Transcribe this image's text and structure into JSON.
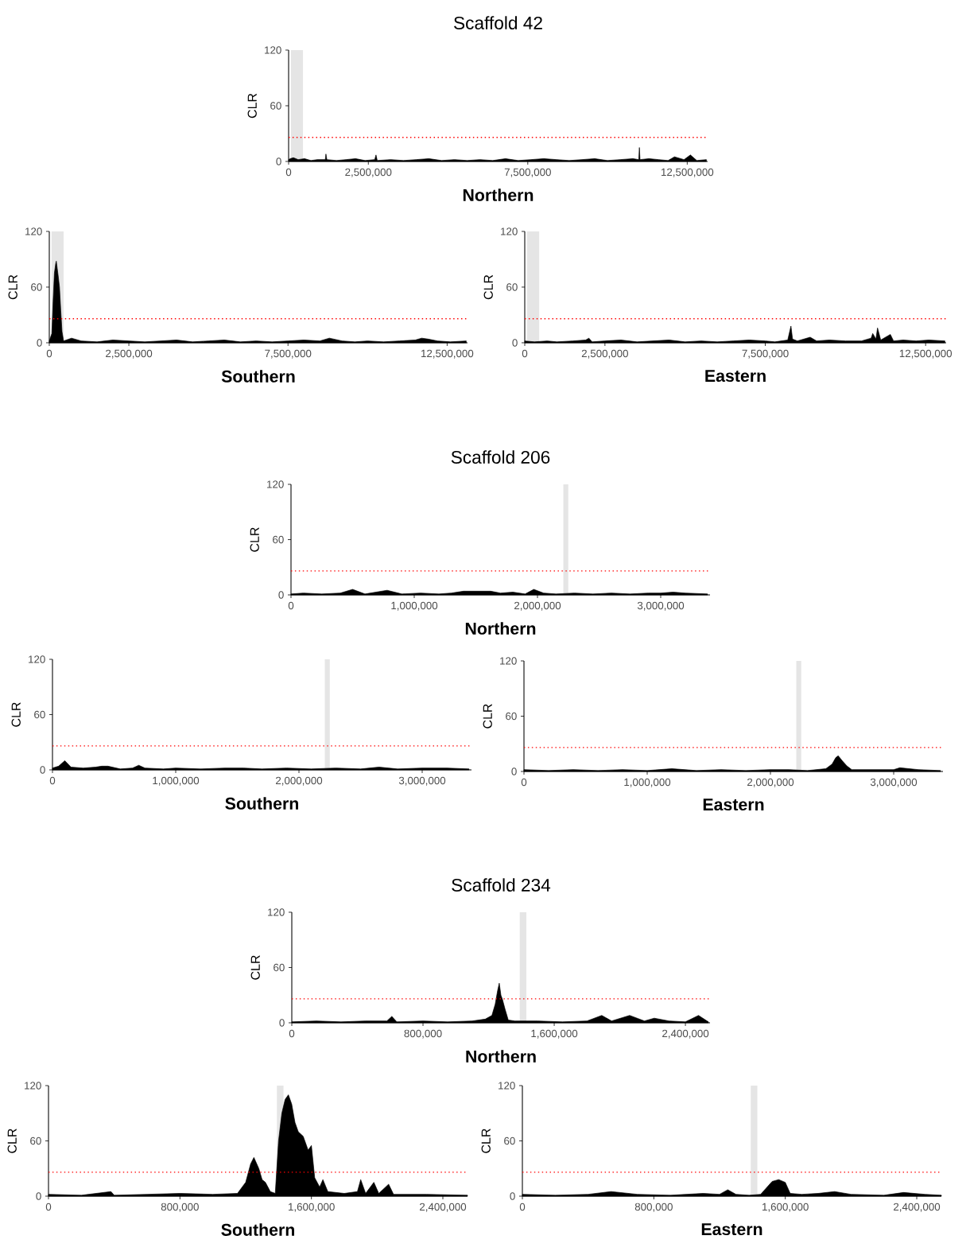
{
  "chart_data": [
    {
      "type": "area",
      "title": "Scaffold 42",
      "xlabel": "Northern",
      "ylabel": "CLR",
      "color": "#000000",
      "xlim": [
        0,
        13140000
      ],
      "xticks": [
        0,
        {
          "value": 2500000,
          "label": "2,500,000"
        },
        {
          "value": 7500000,
          "label": "7,500,000"
        },
        {
          "value": 12500000,
          "label": "12,500,000"
        }
      ],
      "ylim": [
        0,
        120
      ],
      "yticks": [
        0,
        60,
        120
      ],
      "ref_lines": [
        {
          "axis": "y",
          "value": 26,
          "color": "#ff0000",
          "line_style": "dotted"
        }
      ],
      "bands": [
        {
          "axis": "x",
          "from": 70000,
          "to": 450000,
          "color": "#e5e5e5"
        }
      ],
      "x": [
        0,
        50000,
        150000,
        300000,
        500000,
        700000,
        900000,
        1150000,
        1170000,
        1200000,
        1500000,
        1800000,
        2100000,
        2400000,
        2700000,
        2740000,
        2780000,
        3200000,
        3600000,
        4000000,
        4400000,
        4800000,
        5200000,
        5600000,
        6000000,
        6400000,
        6800000,
        7200000,
        7600000,
        8000000,
        8400000,
        8800000,
        9200000,
        9600000,
        10000000,
        10400000,
        10800000,
        10980000,
        11000000,
        11020000,
        11300000,
        11600000,
        11900000,
        12100000,
        12400000,
        12600000,
        12800000,
        13100000
      ],
      "values": [
        2,
        3,
        4,
        2,
        3,
        1,
        2,
        2,
        8,
        2,
        1,
        2,
        3,
        1,
        2,
        7,
        1,
        2,
        1,
        2,
        3,
        1,
        2,
        1,
        2,
        1,
        3,
        1,
        2,
        3,
        2,
        1,
        2,
        3,
        1,
        2,
        3,
        2,
        15,
        2,
        3,
        2,
        1,
        5,
        2,
        7,
        1,
        2
      ]
    },
    {
      "type": "area",
      "xlabel": "Southern",
      "ylabel": "CLR",
      "color": "#000000",
      "xlim": [
        0,
        13140000
      ],
      "xticks": [
        0,
        {
          "value": 2500000,
          "label": "2,500,000"
        },
        {
          "value": 7500000,
          "label": "7,500,000"
        },
        {
          "value": 12500000,
          "label": "12,500,000"
        }
      ],
      "ylim": [
        0,
        120
      ],
      "yticks": [
        0,
        60,
        120
      ],
      "ref_lines": [
        {
          "axis": "y",
          "value": 26,
          "color": "#ff0000",
          "line_style": "dotted"
        }
      ],
      "bands": [
        {
          "axis": "x",
          "from": 70000,
          "to": 450000,
          "color": "#e5e5e5"
        }
      ],
      "x": [
        0,
        80000,
        120000,
        160000,
        200000,
        220000,
        250000,
        280000,
        320000,
        360000,
        400000,
        450000,
        700000,
        1000000,
        1500000,
        2000000,
        2500000,
        3000000,
        3500000,
        4000000,
        4500000,
        5000000,
        5500000,
        6000000,
        6500000,
        7000000,
        7500000,
        8000000,
        8500000,
        8800000,
        9200000,
        9600000,
        10000000,
        10500000,
        11000000,
        11500000,
        11700000,
        11900000,
        12200000,
        12600000,
        13100000
      ],
      "values": [
        2,
        10,
        45,
        75,
        85,
        88,
        80,
        72,
        60,
        35,
        12,
        2,
        5,
        2,
        1,
        3,
        2,
        1,
        2,
        3,
        1,
        2,
        3,
        1,
        2,
        1,
        2,
        3,
        2,
        5,
        2,
        1,
        2,
        1,
        2,
        3,
        5,
        4,
        2,
        1,
        2
      ]
    },
    {
      "type": "area",
      "xlabel": "Eastern",
      "ylabel": "CLR",
      "color": "#000000",
      "xlim": [
        0,
        13140000
      ],
      "xticks": [
        0,
        {
          "value": 2500000,
          "label": "2,500,000"
        },
        {
          "value": 7500000,
          "label": "7,500,000"
        },
        {
          "value": 12500000,
          "label": "12,500,000"
        }
      ],
      "ylim": [
        0,
        120
      ],
      "yticks": [
        0,
        60,
        120
      ],
      "ref_lines": [
        {
          "axis": "y",
          "value": 26,
          "color": "#ff0000",
          "line_style": "dotted"
        }
      ],
      "bands": [
        {
          "axis": "x",
          "from": 70000,
          "to": 450000,
          "color": "#e5e5e5"
        }
      ],
      "x": [
        0,
        300000,
        700000,
        1000000,
        1500000,
        1900000,
        2000000,
        2100000,
        2500000,
        3000000,
        3500000,
        4000000,
        4500000,
        5000000,
        5500000,
        6000000,
        6500000,
        7000000,
        7500000,
        7800000,
        8200000,
        8300000,
        8350000,
        8500000,
        8900000,
        9100000,
        9500000,
        10000000,
        10500000,
        10800000,
        10850000,
        10950000,
        11000000,
        11100000,
        11400000,
        11500000,
        11800000,
        12200000,
        12600000,
        13100000
      ],
      "values": [
        2,
        1,
        2,
        1,
        2,
        3,
        5,
        1,
        2,
        3,
        1,
        2,
        3,
        1,
        2,
        1,
        2,
        3,
        2,
        1,
        3,
        18,
        4,
        2,
        6,
        2,
        3,
        2,
        2,
        5,
        10,
        4,
        16,
        3,
        9,
        2,
        3,
        2,
        3,
        2
      ]
    },
    {
      "type": "area",
      "title": "Scaffold 206",
      "xlabel": "Northern",
      "ylabel": "CLR",
      "color": "#000000",
      "xlim": [
        0,
        3400000
      ],
      "xticks": [
        0,
        {
          "value": 1000000,
          "label": "1,000,000"
        },
        {
          "value": 2000000,
          "label": "2,000,000"
        },
        {
          "value": 3000000,
          "label": "3,000,000"
        }
      ],
      "ylim": [
        0,
        120
      ],
      "yticks": [
        0,
        60,
        120
      ],
      "ref_lines": [
        {
          "axis": "y",
          "value": 26,
          "color": "#ff0000",
          "line_style": "dotted"
        }
      ],
      "bands": [
        {
          "axis": "x",
          "from": 2210000,
          "to": 2250000,
          "color": "#e5e5e5"
        }
      ],
      "x": [
        0,
        100000,
        250000,
        400000,
        500000,
        600000,
        780000,
        900000,
        1050000,
        1200000,
        1300000,
        1400000,
        1520000,
        1620000,
        1700000,
        1800000,
        1900000,
        1970000,
        2050000,
        2150000,
        2300000,
        2450000,
        2600000,
        2750000,
        2900000,
        3000000,
        3100000,
        3200000,
        3380000
      ],
      "values": [
        1,
        2,
        1,
        2,
        6,
        1,
        5,
        1,
        2,
        1,
        2,
        4,
        4,
        4,
        2,
        3,
        1,
        6,
        2,
        1,
        2,
        1,
        2,
        1,
        2,
        2,
        3,
        2,
        1
      ]
    },
    {
      "type": "area",
      "xlabel": "Southern",
      "ylabel": "CLR",
      "color": "#000000",
      "xlim": [
        0,
        3400000
      ],
      "xticks": [
        0,
        {
          "value": 1000000,
          "label": "1,000,000"
        },
        {
          "value": 2000000,
          "label": "2,000,000"
        },
        {
          "value": 3000000,
          "label": "3,000,000"
        }
      ],
      "ylim": [
        0,
        120
      ],
      "yticks": [
        0,
        60,
        120
      ],
      "ref_lines": [
        {
          "axis": "y",
          "value": 26,
          "color": "#ff0000",
          "line_style": "dotted"
        }
      ],
      "bands": [
        {
          "axis": "x",
          "from": 2210000,
          "to": 2250000,
          "color": "#e5e5e5"
        }
      ],
      "x": [
        0,
        50000,
        100000,
        150000,
        250000,
        350000,
        400000,
        450000,
        550000,
        650000,
        700000,
        750000,
        900000,
        1000000,
        1200000,
        1400000,
        1550000,
        1700000,
        1900000,
        2100000,
        2300000,
        2500000,
        2650000,
        2800000,
        3000000,
        3200000,
        3380000
      ],
      "values": [
        2,
        4,
        10,
        3,
        2,
        3,
        4,
        4,
        1,
        2,
        5,
        2,
        1,
        2,
        1,
        2,
        2,
        1,
        2,
        1,
        2,
        1,
        3,
        1,
        2,
        2,
        1
      ]
    },
    {
      "type": "area",
      "xlabel": "Eastern",
      "ylabel": "CLR",
      "color": "#000000",
      "xlim": [
        0,
        3400000
      ],
      "xticks": [
        0,
        {
          "value": 1000000,
          "label": "1,000,000"
        },
        {
          "value": 2000000,
          "label": "2,000,000"
        },
        {
          "value": 3000000,
          "label": "3,000,000"
        }
      ],
      "ylim": [
        0,
        120
      ],
      "yticks": [
        0,
        60,
        120
      ],
      "ref_lines": [
        {
          "axis": "y",
          "value": 26,
          "color": "#ff0000",
          "line_style": "dotted"
        }
      ],
      "bands": [
        {
          "axis": "x",
          "from": 2210000,
          "to": 2250000,
          "color": "#e5e5e5"
        }
      ],
      "x": [
        0,
        200000,
        400000,
        600000,
        800000,
        1000000,
        1200000,
        1400000,
        1600000,
        1800000,
        2000000,
        2150000,
        2300000,
        2450000,
        2500000,
        2530000,
        2550000,
        2580000,
        2620000,
        2660000,
        2800000,
        3000000,
        3050000,
        3200000,
        3380000
      ],
      "values": [
        2,
        1,
        2,
        1,
        2,
        1,
        3,
        1,
        2,
        1,
        2,
        2,
        1,
        3,
        8,
        15,
        17,
        12,
        6,
        2,
        2,
        2,
        4,
        2,
        1
      ]
    },
    {
      "type": "area",
      "title": "Scaffold 234",
      "xlabel": "Northern",
      "ylabel": "CLR",
      "color": "#000000",
      "xlim": [
        0,
        2550000
      ],
      "xticks": [
        0,
        {
          "value": 800000,
          "label": "800,000"
        },
        {
          "value": 1600000,
          "label": "1,600,000"
        },
        {
          "value": 2400000,
          "label": "2,400,000"
        }
      ],
      "ylim": [
        0,
        120
      ],
      "yticks": [
        0,
        60,
        120
      ],
      "ref_lines": [
        {
          "axis": "y",
          "value": 26,
          "color": "#ff0000",
          "line_style": "dotted"
        }
      ],
      "bands": [
        {
          "axis": "x",
          "from": 1390000,
          "to": 1430000,
          "color": "#e5e5e5"
        }
      ],
      "x": [
        0,
        150000,
        300000,
        450000,
        580000,
        610000,
        640000,
        800000,
        950000,
        1100000,
        1180000,
        1220000,
        1240000,
        1255000,
        1265000,
        1275000,
        1285000,
        1300000,
        1320000,
        1360000,
        1500000,
        1650000,
        1800000,
        1890000,
        1950000,
        2060000,
        2150000,
        2210000,
        2300000,
        2400000,
        2480000,
        2540000
      ],
      "values": [
        1,
        2,
        1,
        2,
        2,
        7,
        1,
        2,
        1,
        2,
        4,
        8,
        20,
        35,
        43,
        30,
        25,
        15,
        3,
        2,
        2,
        1,
        2,
        8,
        2,
        8,
        2,
        5,
        2,
        1,
        8,
        1
      ]
    },
    {
      "type": "area",
      "xlabel": "Southern",
      "ylabel": "CLR",
      "color": "#000000",
      "xlim": [
        0,
        2550000
      ],
      "xticks": [
        0,
        {
          "value": 800000,
          "label": "800,000"
        },
        {
          "value": 1600000,
          "label": "1,600,000"
        },
        {
          "value": 2400000,
          "label": "2,400,000"
        }
      ],
      "ylim": [
        0,
        120
      ],
      "yticks": [
        0,
        60,
        120
      ],
      "ref_lines": [
        {
          "axis": "y",
          "value": 26,
          "color": "#ff0000",
          "line_style": "dotted"
        }
      ],
      "bands": [
        {
          "axis": "x",
          "from": 1390000,
          "to": 1430000,
          "color": "#e5e5e5"
        }
      ],
      "x": [
        0,
        200000,
        380000,
        400000,
        600000,
        800000,
        1000000,
        1150000,
        1200000,
        1230000,
        1250000,
        1280000,
        1300000,
        1320000,
        1350000,
        1380000,
        1400000,
        1420000,
        1440000,
        1460000,
        1480000,
        1500000,
        1520000,
        1550000,
        1580000,
        1600000,
        1620000,
        1650000,
        1670000,
        1700000,
        1800000,
        1880000,
        1900000,
        1930000,
        1980000,
        2010000,
        2070000,
        2100000,
        2300000,
        2550000
      ],
      "values": [
        2,
        1,
        5,
        1,
        2,
        3,
        2,
        3,
        15,
        35,
        42,
        30,
        18,
        15,
        5,
        3,
        60,
        90,
        105,
        110,
        100,
        80,
        70,
        65,
        50,
        55,
        20,
        10,
        18,
        5,
        3,
        5,
        18,
        3,
        15,
        3,
        13,
        2,
        2,
        1
      ]
    },
    {
      "type": "area",
      "xlabel": "Eastern",
      "ylabel": "CLR",
      "color": "#000000",
      "xlim": [
        0,
        2550000
      ],
      "xticks": [
        0,
        {
          "value": 800000,
          "label": "800,000"
        },
        {
          "value": 1600000,
          "label": "1,600,000"
        },
        {
          "value": 2400000,
          "label": "2,400,000"
        }
      ],
      "ylim": [
        0,
        120
      ],
      "yticks": [
        0,
        60,
        120
      ],
      "ref_lines": [
        {
          "axis": "y",
          "value": 26,
          "color": "#ff0000",
          "line_style": "dotted"
        }
      ],
      "bands": [
        {
          "axis": "x",
          "from": 1390000,
          "to": 1430000,
          "color": "#e5e5e5"
        }
      ],
      "x": [
        0,
        200000,
        400000,
        540000,
        700000,
        900000,
        1100000,
        1200000,
        1250000,
        1300000,
        1380000,
        1450000,
        1480000,
        1520000,
        1560000,
        1600000,
        1630000,
        1700000,
        1800000,
        1900000,
        2000000,
        2200000,
        2320000,
        2450000,
        2550000
      ],
      "values": [
        2,
        1,
        2,
        5,
        2,
        1,
        3,
        2,
        7,
        2,
        1,
        2,
        8,
        16,
        18,
        15,
        3,
        2,
        3,
        5,
        2,
        1,
        4,
        2,
        1
      ]
    }
  ]
}
